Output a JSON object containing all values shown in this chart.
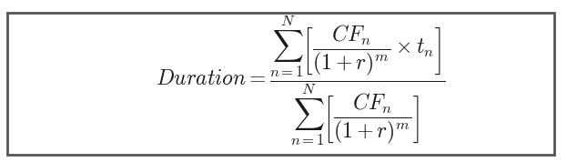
{
  "formula_latex": "$Duration = \\dfrac{\\sum_{n=1}^{N}\\left[\\dfrac{CF_n}{(1+r)^m} \\times t_n\\right]}{\\sum_{n=1}^{N}\\left[\\dfrac{CF_n}{(1+r)^m}\\right]}$",
  "bg_color": "#ffffff",
  "border_color": "#555555",
  "text_color": "#1a1a1a",
  "fig_width": 6.23,
  "fig_height": 1.78,
  "font_size": 17
}
